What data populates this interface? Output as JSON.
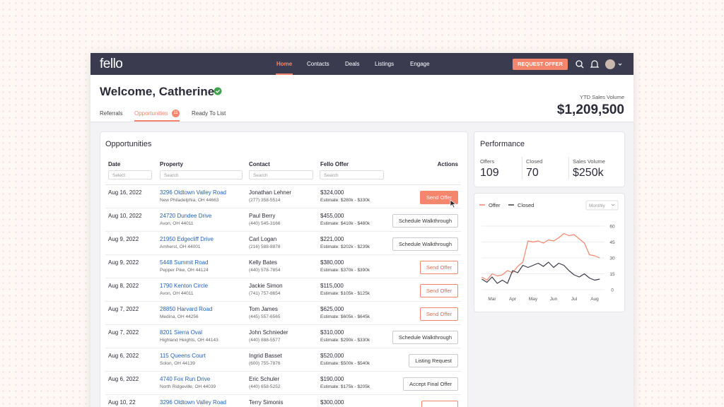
{
  "nav": {
    "logo": "fello",
    "items": [
      "Home",
      "Contacts",
      "Deals",
      "Listings",
      "Engage"
    ],
    "button": "REQUEST OFFER"
  },
  "header": {
    "title": "Welcome, Catherine",
    "tabs": [
      "Referrals",
      "Opportunities",
      "Ready To List"
    ],
    "badge": "11",
    "ytd_label": "YTD Sales Volume",
    "ytd_value": "$1,209,500"
  },
  "opportunities": {
    "title": "Opportunities",
    "columns": [
      "Date",
      "Property",
      "Contact",
      "Fello Offer",
      "Actions"
    ],
    "filters": [
      "Select",
      "Search",
      "Search",
      "Search"
    ],
    "rows": [
      {
        "date": "Aug 16, 2022",
        "property": "3296 Oldtown Valley Road",
        "address": "New Philadelphia, OH 44663",
        "contact": "Jonathan Lehner",
        "phone": "(277) 358-5514",
        "offer": "$324,000",
        "estimate": "Estimate: $280k - $330k",
        "action": "Send Offer"
      },
      {
        "date": "Aug 10, 2022",
        "property": "24720 Dundee Drive",
        "address": "Avon, OH 44011",
        "contact": "Paul Berry",
        "phone": "(440) 545-3166",
        "offer": "$455,000",
        "estimate": "Estimate: $410k - $480k",
        "action": "Schedule Walkthrough"
      },
      {
        "date": "Aug 9, 2022",
        "property": "21950 Edgecliff Drive",
        "address": "Amherst, OH 44001",
        "contact": "Carl Logan",
        "phone": "(216) 588-8878",
        "offer": "$221,000",
        "estimate": "Estimate: $202k - $239k",
        "action": "Schedule Walkthrough"
      },
      {
        "date": "Aug 9, 2022",
        "property": "5448 Summit Road",
        "address": "Pepper Pike, OH 44124",
        "contact": "Kelly Bates",
        "phone": "(440) 578-7854",
        "offer": "$380,000",
        "estimate": "Estimate: $370k - $390k",
        "action": "Send Offer"
      },
      {
        "date": "Aug 8, 2022",
        "property": "1790 Kenton Circle",
        "address": "Avon, OH 44011",
        "contact": "Jackie Simon",
        "phone": "(741) 757-8654",
        "offer": "$115,000",
        "estimate": "Estimate: $105k - $125k",
        "action": "Send Offer"
      },
      {
        "date": "Aug 7, 2022",
        "property": "28850 Harvard Road",
        "address": "Medina, OH 44256",
        "contact": "Tom James",
        "phone": "(445) 557-6565",
        "offer": "$625,000",
        "estimate": "Estimate: $605k - $645k",
        "action": "Send Offer"
      },
      {
        "date": "Aug 7, 2022",
        "property": "8201 Sierra Oval",
        "address": "Highland Heights, OH 44143",
        "contact": "John Schnieder",
        "phone": "(440) 888-5577",
        "offer": "$310,000",
        "estimate": "Estimate: $290k - $330k",
        "action": "Schedule Walkthrough"
      },
      {
        "date": "Aug 6, 2022",
        "property": "115 Queens Court",
        "address": "Solon, OH 44139",
        "contact": "Ingrid Basset",
        "phone": "(600) 755-7876",
        "offer": "$520,000",
        "estimate": "Estimate: $500k - $540k",
        "action": "Listing Request"
      },
      {
        "date": "Aug 6, 2022",
        "property": "4740 Fox Run Drive",
        "address": "North Ridgeville, OH 44039",
        "contact": "Eric Schuler",
        "phone": "(440) 658-5252",
        "offer": "$190,000",
        "estimate": "Estimate: $175k - $205k",
        "action": "Accept Final Offer"
      },
      {
        "date": "Aug 10, 22",
        "property": "3296 Oldtown Valley Road",
        "contact": "Terry Simonis",
        "offer": "$300,000"
      }
    ]
  },
  "performance": {
    "title": "Performance",
    "stats": [
      {
        "label": "Offers",
        "value": "109"
      },
      {
        "label": "Closed",
        "value": "70"
      },
      {
        "label": "Sales Volume",
        "value": "$250k"
      }
    ]
  },
  "chart_data": {
    "type": "line",
    "dropdown": "Monthly",
    "categories": [
      null,
      null,
      "Mar",
      null,
      null,
      null,
      "Apr",
      null,
      null,
      null,
      "May",
      null,
      null,
      null,
      "Jun",
      null,
      null,
      null,
      "Jul",
      null,
      null,
      null,
      "Aug",
      null
    ],
    "series": [
      {
        "name": "Offer",
        "color": "#f0866c",
        "values": [
          12,
          9,
          15,
          13,
          14,
          18,
          16,
          22,
          26,
          46,
          45,
          46,
          44,
          47,
          46,
          49,
          53,
          51,
          52,
          48,
          44,
          33,
          32,
          30
        ]
      },
      {
        "name": "Closed",
        "color": "#3a3a48",
        "values": [
          10,
          7,
          12,
          6,
          9,
          6,
          18,
          16,
          23,
          21,
          23,
          25,
          22,
          26,
          21,
          25,
          23,
          18,
          14,
          12,
          15,
          11,
          9,
          10
        ]
      }
    ],
    "ylim": [
      0,
      60
    ],
    "yticks": [
      0,
      15,
      30,
      45,
      60
    ],
    "grid": true
  }
}
